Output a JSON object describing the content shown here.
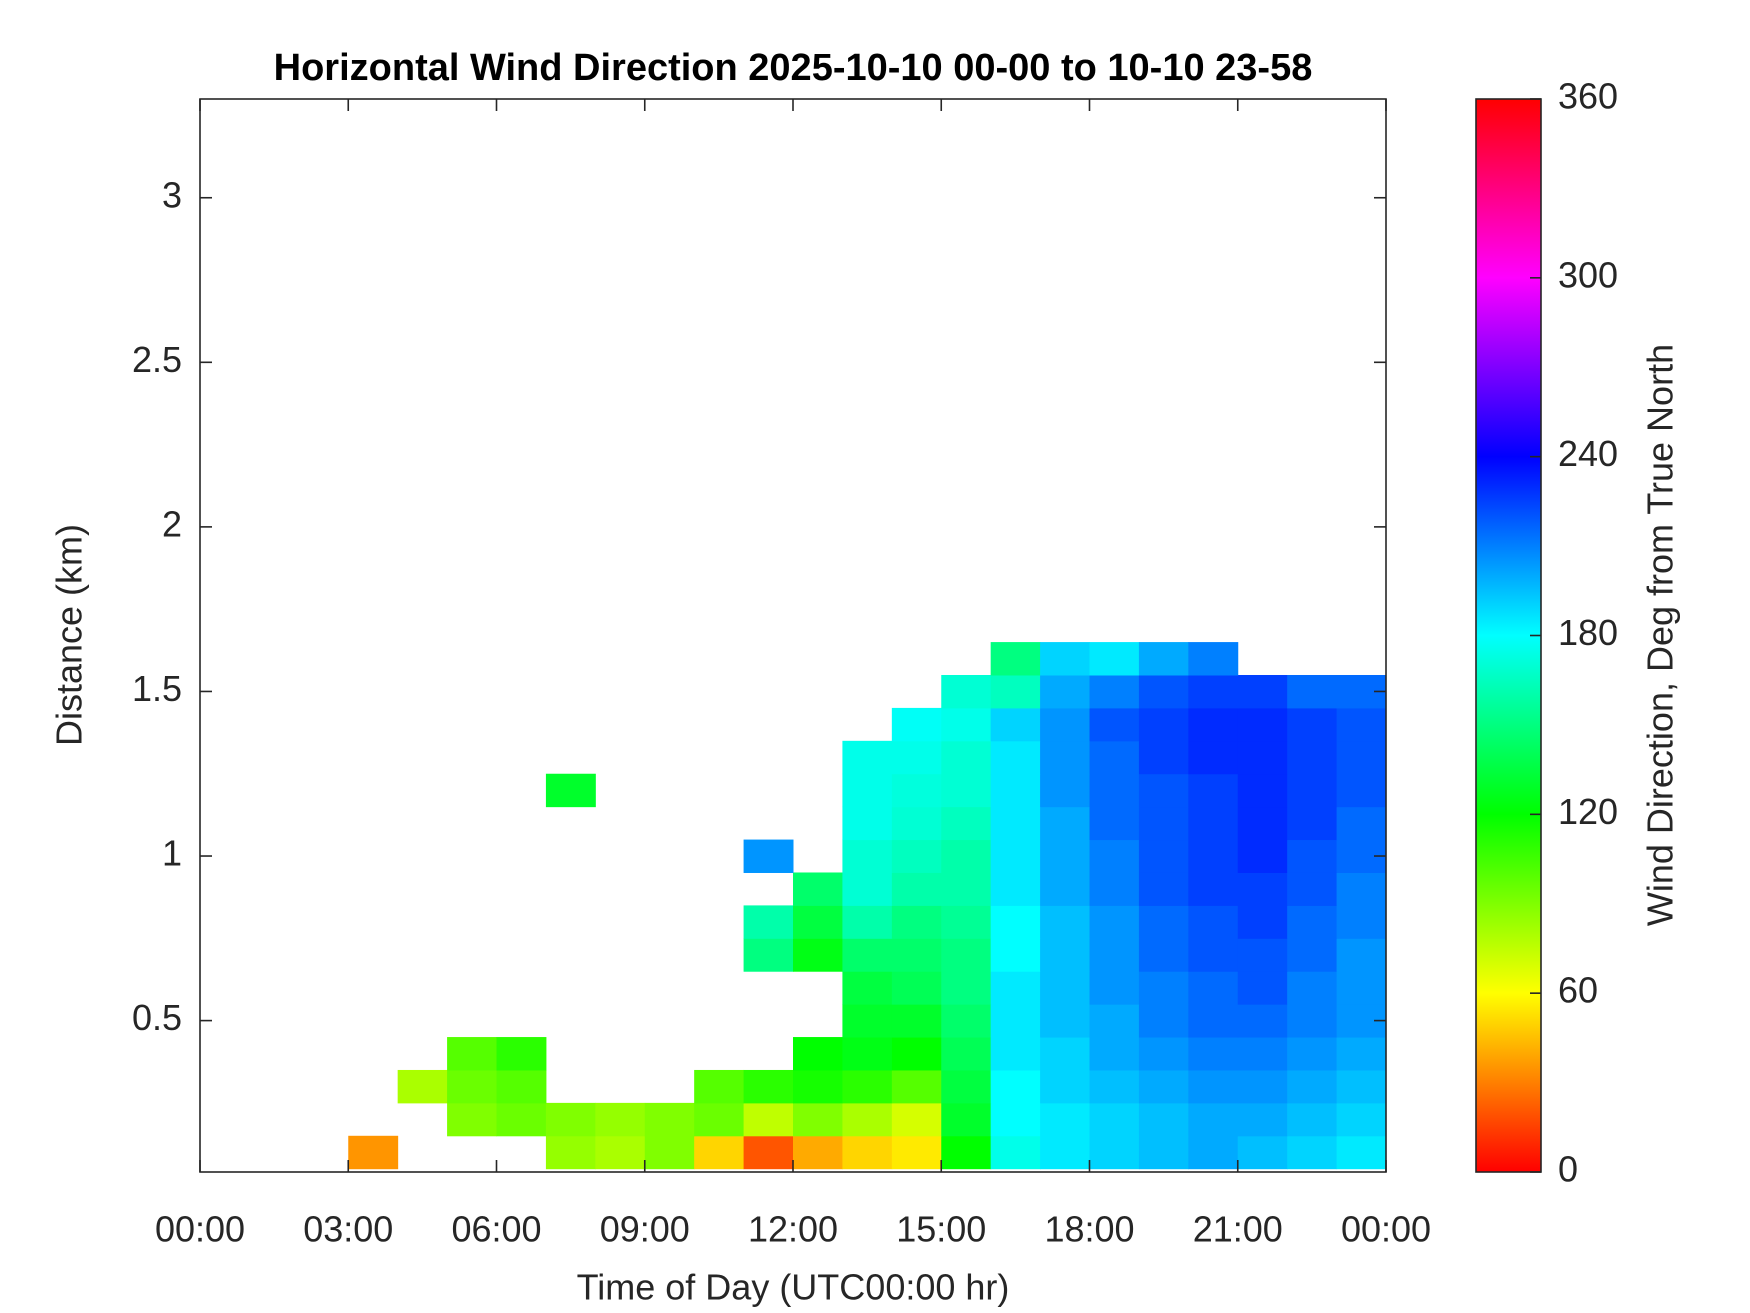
{
  "chart_data": {
    "type": "heatmap",
    "title": "Horizontal Wind Direction 2025-10-10 00-00 to 10-10 23-58",
    "xlabel": "Time of Day (UTC00:00 hr)",
    "ylabel": "Distance (km)",
    "xlim": [
      0,
      24
    ],
    "ylim": [
      0.04,
      3.3
    ],
    "xticks": [
      {
        "value": 0,
        "label": "00:00"
      },
      {
        "value": 3,
        "label": "03:00"
      },
      {
        "value": 6,
        "label": "06:00"
      },
      {
        "value": 9,
        "label": "09:00"
      },
      {
        "value": 12,
        "label": "12:00"
      },
      {
        "value": 15,
        "label": "15:00"
      },
      {
        "value": 18,
        "label": "18:00"
      },
      {
        "value": 21,
        "label": "21:00"
      },
      {
        "value": 24,
        "label": "00:00"
      }
    ],
    "yticks": [
      0.5,
      1,
      1.5,
      2,
      2.5,
      3
    ],
    "colormap": "hsv",
    "colorbar": {
      "label": "Wind Direction, Deg from True North",
      "clim": [
        0,
        360
      ],
      "ticks": [
        0,
        60,
        120,
        180,
        240,
        300,
        360
      ]
    },
    "x": [
      0.5,
      1.5,
      2.5,
      3.5,
      4.5,
      5.5,
      6.5,
      7.5,
      8.5,
      9.5,
      10.5,
      11.5,
      12.5,
      13.5,
      14.5,
      15.5,
      16.5,
      17.5,
      18.5,
      19.5,
      20.5,
      21.5,
      22.5,
      23.5
    ],
    "y": [
      0.1,
      0.2,
      0.3,
      0.4,
      0.5,
      0.6,
      0.7,
      0.8,
      0.9,
      1.0,
      1.1,
      1.2,
      1.3,
      1.4,
      1.5,
      1.6
    ],
    "z": [
      [
        null,
        null,
        null,
        35,
        null,
        null,
        null,
        85,
        80,
        90,
        50,
        20,
        40,
        50,
        55,
        120,
        175,
        185,
        190,
        195,
        200,
        195,
        190,
        185
      ],
      [
        null,
        null,
        null,
        null,
        null,
        90,
        95,
        90,
        85,
        90,
        95,
        75,
        90,
        80,
        70,
        130,
        180,
        185,
        190,
        195,
        200,
        200,
        195,
        190
      ],
      [
        null,
        null,
        null,
        null,
        80,
        95,
        100,
        null,
        null,
        null,
        100,
        110,
        115,
        110,
        100,
        135,
        180,
        190,
        195,
        200,
        205,
        205,
        200,
        195
      ],
      [
        null,
        null,
        null,
        null,
        null,
        100,
        110,
        null,
        null,
        null,
        null,
        null,
        120,
        125,
        120,
        140,
        185,
        190,
        200,
        205,
        210,
        210,
        205,
        200
      ],
      [
        null,
        null,
        null,
        null,
        null,
        null,
        null,
        null,
        null,
        null,
        null,
        null,
        null,
        130,
        130,
        145,
        185,
        195,
        200,
        210,
        215,
        215,
        210,
        205
      ],
      [
        null,
        null,
        null,
        null,
        null,
        null,
        null,
        null,
        null,
        null,
        null,
        null,
        null,
        135,
        140,
        150,
        185,
        195,
        205,
        210,
        215,
        220,
        210,
        205
      ],
      [
        null,
        null,
        null,
        null,
        null,
        null,
        null,
        null,
        null,
        null,
        null,
        150,
        125,
        145,
        145,
        150,
        180,
        195,
        205,
        215,
        220,
        220,
        215,
        205
      ],
      [
        null,
        null,
        null,
        null,
        null,
        null,
        null,
        null,
        null,
        null,
        null,
        160,
        135,
        160,
        150,
        155,
        180,
        195,
        205,
        215,
        220,
        225,
        215,
        210
      ],
      [
        null,
        null,
        null,
        null,
        null,
        null,
        null,
        null,
        null,
        null,
        null,
        null,
        145,
        170,
        160,
        160,
        185,
        200,
        210,
        220,
        225,
        225,
        220,
        210
      ],
      [
        null,
        null,
        null,
        null,
        null,
        null,
        null,
        null,
        null,
        null,
        null,
        205,
        null,
        170,
        165,
        160,
        185,
        200,
        210,
        220,
        225,
        230,
        220,
        215
      ],
      [
        null,
        null,
        null,
        null,
        null,
        null,
        null,
        null,
        null,
        null,
        null,
        null,
        null,
        175,
        170,
        165,
        185,
        200,
        215,
        220,
        225,
        230,
        225,
        215
      ],
      [
        null,
        null,
        null,
        null,
        null,
        null,
        null,
        130,
        null,
        null,
        null,
        null,
        null,
        175,
        172,
        170,
        185,
        205,
        215,
        220,
        225,
        230,
        225,
        220
      ],
      [
        null,
        null,
        null,
        null,
        null,
        null,
        null,
        null,
        null,
        null,
        null,
        null,
        null,
        175,
        175,
        170,
        185,
        205,
        215,
        225,
        230,
        230,
        225,
        220
      ],
      [
        null,
        null,
        null,
        null,
        null,
        null,
        null,
        null,
        null,
        null,
        null,
        null,
        null,
        null,
        178,
        175,
        190,
        205,
        220,
        225,
        230,
        230,
        225,
        220
      ],
      [
        null,
        null,
        null,
        null,
        null,
        null,
        null,
        null,
        null,
        null,
        null,
        null,
        null,
        null,
        null,
        170,
        165,
        200,
        210,
        220,
        225,
        225,
        215,
        215
      ],
      [
        null,
        null,
        null,
        null,
        null,
        null,
        null,
        null,
        null,
        null,
        null,
        null,
        null,
        null,
        null,
        null,
        150,
        190,
        185,
        200,
        210,
        null,
        null,
        null
      ]
    ]
  }
}
